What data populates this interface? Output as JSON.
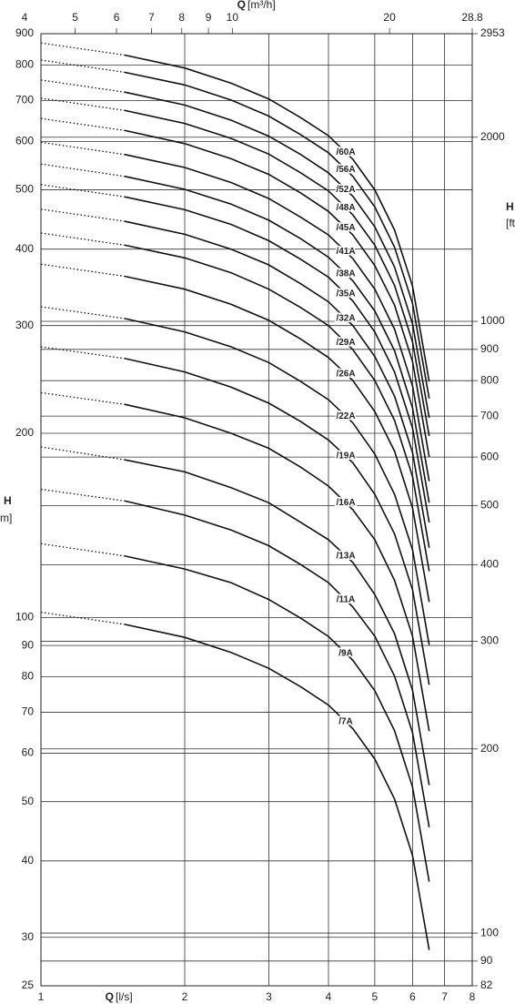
{
  "chart_data": {
    "type": "line",
    "x_label": "Q",
    "x_unit": "[l/s]",
    "x2_label": "Q",
    "x2_unit": "[m³/h]",
    "y_label": "H",
    "y_unit": "m]",
    "y2_label": "H",
    "y2_unit": "[ft",
    "log_x": true,
    "log_y": true,
    "grid": true,
    "color": "#111111",
    "xlim": [
      1,
      8
    ],
    "xticks": [
      1,
      2,
      3,
      4,
      5,
      6,
      7,
      8
    ],
    "x2lim": [
      4.3,
      28.8
    ],
    "x2ticks": [
      4,
      5,
      6,
      7,
      8,
      9,
      10,
      20,
      28.8
    ],
    "ylim": [
      25,
      900
    ],
    "yticks": [
      25,
      30,
      40,
      50,
      60,
      70,
      80,
      90,
      100,
      200,
      300,
      400,
      500,
      600,
      700,
      800,
      900
    ],
    "y2lim": [
      82,
      2953
    ],
    "y2ticks": [
      82,
      90,
      100,
      200,
      300,
      400,
      500,
      600,
      700,
      800,
      900,
      1000,
      2000,
      2953
    ],
    "x": [
      1,
      1.5,
      2,
      2.5,
      3,
      3.5,
      4,
      4.5,
      5,
      5.5,
      6,
      6.5
    ],
    "series": [
      {
        "name": "/60A",
        "values": [
          869,
          830,
          791,
          747,
          704,
          656,
          613,
          561,
          500,
          430,
          348,
          243
        ]
      },
      {
        "name": "/56A",
        "values": [
          815,
          778,
          742,
          701,
          660,
          615,
          575,
          526,
          469,
          403,
          326,
          228
        ]
      },
      {
        "name": "/52A",
        "values": [
          756,
          722,
          688,
          650,
          612,
          571,
          533,
          488,
          435,
          374,
          302,
          212
        ]
      },
      {
        "name": "/48A",
        "values": [
          706,
          674,
          642,
          607,
          572,
          533,
          498,
          455,
          406,
          349,
          282,
          198
        ]
      },
      {
        "name": "/45A",
        "values": [
          654,
          625,
          595,
          562,
          530,
          494,
          461,
          422,
          376,
          324,
          262,
          183
        ]
      },
      {
        "name": "/41A",
        "values": [
          598,
          571,
          544,
          514,
          484,
          451,
          422,
          386,
          344,
          296,
          239,
          167
        ]
      },
      {
        "name": "/38A",
        "values": [
          551,
          526,
          501,
          474,
          446,
          416,
          388,
          355,
          317,
          273,
          220,
          154
        ]
      },
      {
        "name": "/35A",
        "values": [
          510,
          487,
          464,
          439,
          413,
          385,
          360,
          329,
          293,
          252,
          204,
          143
        ]
      },
      {
        "name": "/32A",
        "values": [
          465,
          444,
          423,
          400,
          377,
          351,
          328,
          300,
          267,
          230,
          186,
          130
        ]
      },
      {
        "name": "/29A",
        "values": [
          425,
          406,
          387,
          366,
          344,
          321,
          300,
          274,
          244,
          210,
          170,
          119
        ]
      },
      {
        "name": "/26A",
        "values": [
          378,
          361,
          344,
          325,
          306,
          285,
          266,
          244,
          217,
          187,
          151,
          106
        ]
      },
      {
        "name": "/22A",
        "values": [
          322,
          308,
          293,
          277,
          261,
          243,
          227,
          208,
          185,
          159,
          129,
          90.2
        ]
      },
      {
        "name": "/19A",
        "values": [
          277,
          265,
          252,
          238,
          224,
          209,
          195,
          179,
          159,
          137,
          111,
          77.6
        ]
      },
      {
        "name": "/16A",
        "values": [
          233,
          223,
          212,
          200,
          189,
          176,
          164,
          150,
          134,
          115,
          93.2,
          65.2
        ]
      },
      {
        "name": "/13A",
        "values": [
          190,
          181,
          173,
          163,
          154,
          143,
          134,
          123,
          109,
          94.1,
          76,
          53.2
        ]
      },
      {
        "name": "/11A",
        "values": [
          162,
          155,
          147,
          139,
          131,
          122,
          114,
          104,
          93.2,
          80.2,
          64.8,
          45.4
        ]
      },
      {
        "name": "/9A",
        "values": [
          132,
          126,
          120,
          114,
          107,
          99.7,
          93.1,
          85.1,
          75.9,
          65.3,
          52.8,
          37
        ]
      },
      {
        "name": "/7A",
        "values": [
          102,
          97.4,
          92.8,
          87.7,
          82.6,
          77,
          71.9,
          65.8,
          58.7,
          50.5,
          40.8,
          28.6
        ]
      }
    ]
  }
}
